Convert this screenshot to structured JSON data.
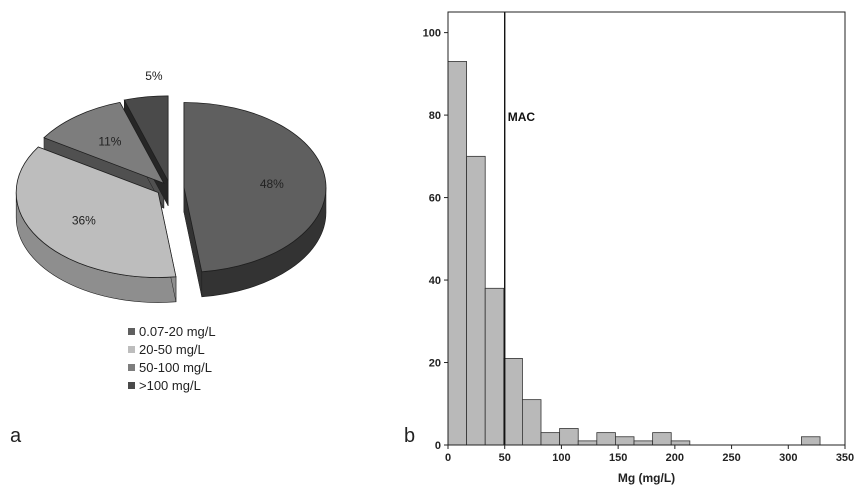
{
  "panels": {
    "a": "a",
    "b": "b"
  },
  "chart_data": [
    {
      "type": "pie",
      "style": "3d-exploded",
      "slices": [
        {
          "label": "0.07-20 mg/L",
          "value": 48,
          "display": "48%",
          "color": "#5f5f5f",
          "side_color": "#333333"
        },
        {
          "label": "20-50 mg/L",
          "value": 36,
          "display": "36%",
          "color": "#bdbdbd",
          "side_color": "#8e8e8e"
        },
        {
          "label": "50-100 mg/L",
          "value": 11,
          "display": "11%",
          "color": "#7d7d7d",
          "side_color": "#505050"
        },
        {
          "label": ">100 mg/L",
          "value": 5,
          "display": "5%",
          "color": "#4a4a4a",
          "side_color": "#262626"
        }
      ],
      "legend_position": "bottom"
    },
    {
      "type": "bar",
      "subtype": "histogram",
      "xlabel": "Mg (mg/L)",
      "ylabel": "",
      "xlim": [
        0,
        350
      ],
      "ylim": [
        0,
        105
      ],
      "xticks": [
        0,
        50,
        100,
        150,
        200,
        250,
        300,
        350
      ],
      "yticks": [
        0,
        20,
        40,
        60,
        80,
        100
      ],
      "bin_width": 16.4,
      "bins": [
        {
          "x0": 0,
          "x1": 16.4,
          "count": 93
        },
        {
          "x0": 16.4,
          "x1": 32.8,
          "count": 70
        },
        {
          "x0": 32.8,
          "x1": 49.2,
          "count": 38
        },
        {
          "x0": 49.2,
          "x1": 65.6,
          "count": 21
        },
        {
          "x0": 65.6,
          "x1": 82.0,
          "count": 11
        },
        {
          "x0": 82.0,
          "x1": 98.4,
          "count": 3
        },
        {
          "x0": 98.4,
          "x1": 114.8,
          "count": 4
        },
        {
          "x0": 114.8,
          "x1": 131.2,
          "count": 1
        },
        {
          "x0": 131.2,
          "x1": 147.6,
          "count": 3
        },
        {
          "x0": 147.6,
          "x1": 164.0,
          "count": 2
        },
        {
          "x0": 164.0,
          "x1": 180.4,
          "count": 1
        },
        {
          "x0": 180.4,
          "x1": 196.8,
          "count": 3
        },
        {
          "x0": 196.8,
          "x1": 213.2,
          "count": 1
        },
        {
          "x0": 213.2,
          "x1": 229.6,
          "count": 0
        },
        {
          "x0": 229.6,
          "x1": 246.0,
          "count": 0
        },
        {
          "x0": 246.0,
          "x1": 262.4,
          "count": 0
        },
        {
          "x0": 262.4,
          "x1": 278.8,
          "count": 0
        },
        {
          "x0": 278.8,
          "x1": 295.2,
          "count": 0
        },
        {
          "x0": 295.2,
          "x1": 311.6,
          "count": 0
        },
        {
          "x0": 311.6,
          "x1": 328.0,
          "count": 2
        }
      ],
      "bar_color": "#b9b9b9",
      "reference_line": {
        "label": "MAC",
        "x": 50
      },
      "grid": false
    }
  ]
}
